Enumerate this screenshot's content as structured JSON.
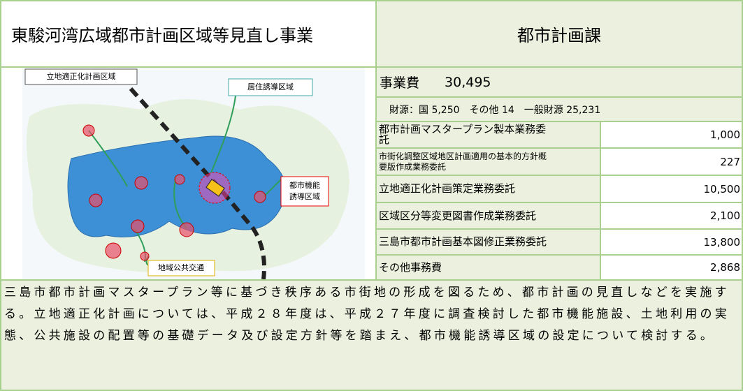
{
  "header": {
    "title": "東駿河湾広域都市計画区域等見直し事業",
    "department": "都市計画課"
  },
  "diagram": {
    "labels": [
      "立地適正化計画区域",
      "居住誘導区域",
      "都市機能",
      "誘導区域",
      "地域公共交通"
    ]
  },
  "budget": {
    "label": "事業費",
    "total": "30,495",
    "funding": "財源：国 5,250　その他 14　一般財源 25,231"
  },
  "table": {
    "rows": [
      [
        "都市計画マスタープラン製本業務委託",
        "1,000"
      ],
      [
        "市街化調整区域地区計画適用の基本的方針概要版作成業務委託",
        "227"
      ],
      [
        "立地適正化計画策定業務委託",
        "10,500"
      ],
      [
        "区域区分等変更図書作成業務委託",
        "2,100"
      ],
      [
        "三島市都市計画基本図修正業務委託",
        "13,800"
      ],
      [
        "その他事務費",
        "2,868"
      ]
    ]
  },
  "description": "三島市都市計画マスタープラン等に基づき秩序ある市街地の形成を図るため、都市計画の見直しなどを実施する。立地適正化計画については、平成２８年度は、平成２７年度に調査検討した都市機能施設、土地利用の実態、公共施設の配置等の基礎データ及び設定方針等を踏まえ、都市機能誘導区域の設定について検討する。"
}
